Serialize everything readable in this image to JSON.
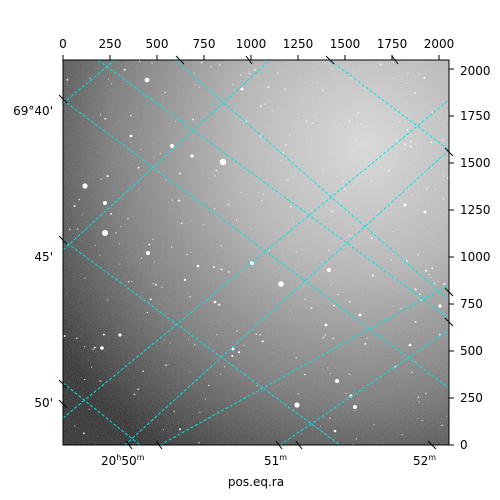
{
  "image": {
    "description_type": "astronomical grayscale image with celestial coordinate overlay",
    "colormap": "gray",
    "grid_color": "#00e5e5"
  },
  "axes": {
    "top_ticks": [
      "0",
      "250",
      "500",
      "750",
      "1000",
      "1250",
      "1500",
      "1750",
      "2000"
    ],
    "right_ticks": [
      "0",
      "250",
      "500",
      "750",
      "1000",
      "1250",
      "1500",
      "1750",
      "2000"
    ],
    "left_ticks": [
      {
        "main": "69°40'",
        "sup": ""
      },
      {
        "main": "45'",
        "sup": ""
      },
      {
        "main": "50'",
        "sup": ""
      }
    ],
    "bottom_ticks": [
      {
        "parts": [
          [
            "20",
            "h"
          ],
          [
            "50",
            "m"
          ]
        ]
      },
      {
        "parts": [
          [
            "51",
            "m"
          ]
        ]
      },
      {
        "parts": [
          [
            "52",
            "m"
          ]
        ]
      }
    ],
    "xlabel": "pos.eq.ra"
  }
}
